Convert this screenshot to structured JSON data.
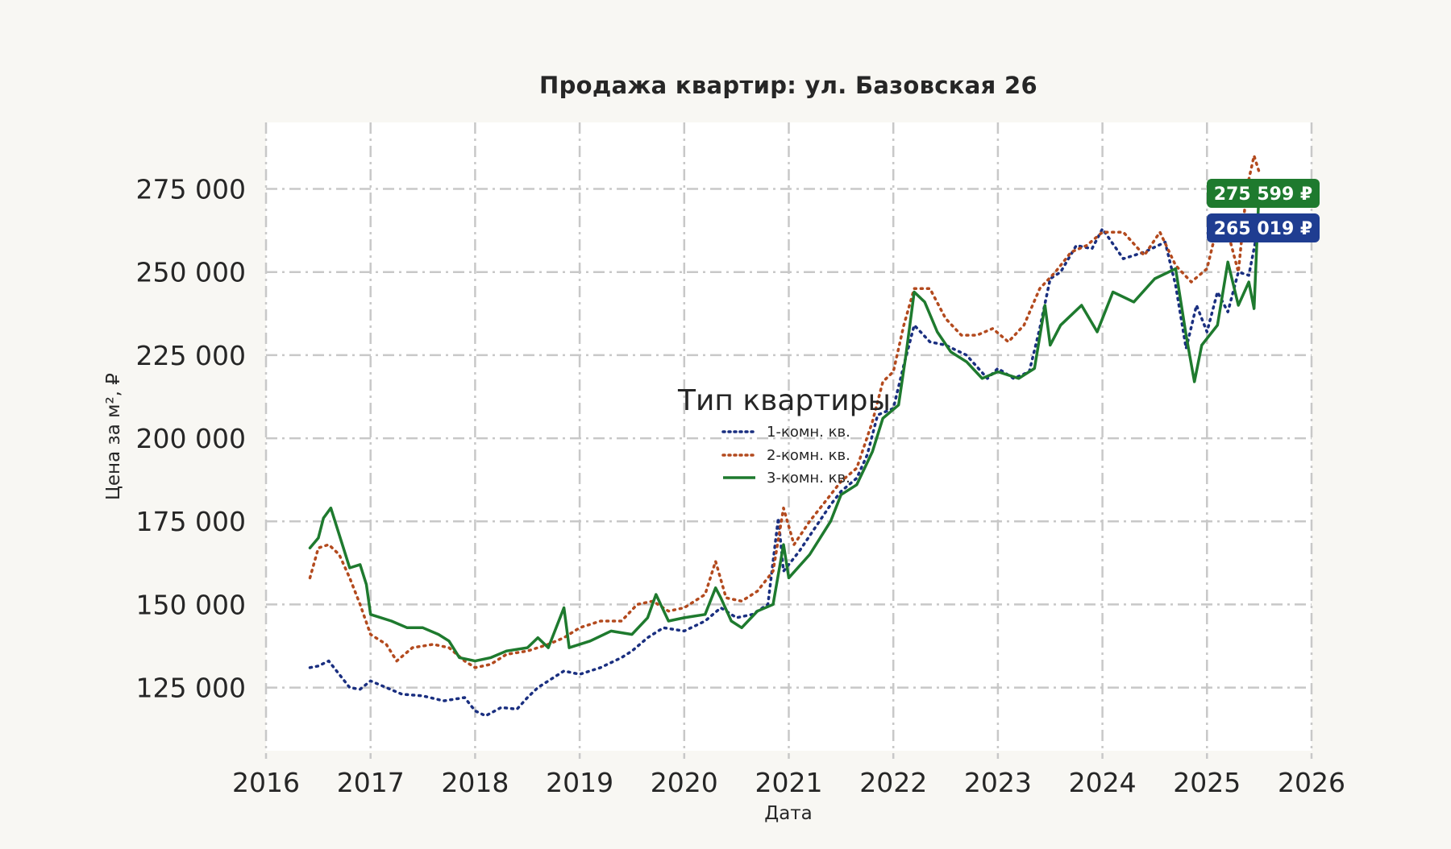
{
  "chart_data": {
    "type": "line",
    "title": "Продажа квартир: ул. Базовская 26",
    "xlabel": "Дата",
    "ylabel": "Цена за м², ₽",
    "xlim": [
      2016.0,
      2026.0
    ],
    "ylim": [
      106000,
      295000
    ],
    "x_ticks": [
      2016,
      2017,
      2018,
      2019,
      2020,
      2021,
      2022,
      2023,
      2024,
      2025,
      2026
    ],
    "x_tick_labels": [
      "2016",
      "2017",
      "2018",
      "2019",
      "2020",
      "2021",
      "2022",
      "2023",
      "2024",
      "2025",
      "2026"
    ],
    "y_ticks": [
      125000,
      150000,
      175000,
      200000,
      225000,
      250000,
      275000
    ],
    "y_tick_labels": [
      "125 000",
      "150 000",
      "175 000",
      "200 000",
      "225 000",
      "250 000",
      "275 000"
    ],
    "grid": true,
    "legend": {
      "title": "Тип квартиры",
      "placement": "center"
    },
    "series": [
      {
        "name": "1-комн. кв.",
        "color": "#1a2f80",
        "style": "dotted",
        "points": [
          [
            2016.42,
            131000
          ],
          [
            2016.5,
            131500
          ],
          [
            2016.6,
            133000
          ],
          [
            2016.7,
            129000
          ],
          [
            2016.8,
            125000
          ],
          [
            2016.9,
            124500
          ],
          [
            2017.0,
            127000
          ],
          [
            2017.15,
            125000
          ],
          [
            2017.3,
            123000
          ],
          [
            2017.5,
            122500
          ],
          [
            2017.7,
            121000
          ],
          [
            2017.9,
            122000
          ],
          [
            2018.0,
            118000
          ],
          [
            2018.1,
            116500
          ],
          [
            2018.25,
            119000
          ],
          [
            2018.4,
            118500
          ],
          [
            2018.5,
            122000
          ],
          [
            2018.6,
            125000
          ],
          [
            2018.75,
            128000
          ],
          [
            2018.85,
            130000
          ],
          [
            2019.0,
            129000
          ],
          [
            2019.2,
            131000
          ],
          [
            2019.4,
            134000
          ],
          [
            2019.5,
            136000
          ],
          [
            2019.65,
            140000
          ],
          [
            2019.8,
            143000
          ],
          [
            2020.0,
            142000
          ],
          [
            2020.2,
            145000
          ],
          [
            2020.35,
            149000
          ],
          [
            2020.5,
            146000
          ],
          [
            2020.65,
            147000
          ],
          [
            2020.8,
            150000
          ],
          [
            2020.9,
            176000
          ],
          [
            2020.95,
            160000
          ],
          [
            2021.1,
            166000
          ],
          [
            2021.25,
            173000
          ],
          [
            2021.4,
            180000
          ],
          [
            2021.5,
            184000
          ],
          [
            2021.65,
            188000
          ],
          [
            2021.75,
            195000
          ],
          [
            2021.85,
            207000
          ],
          [
            2022.0,
            209000
          ],
          [
            2022.1,
            222000
          ],
          [
            2022.2,
            234000
          ],
          [
            2022.35,
            229000
          ],
          [
            2022.5,
            228000
          ],
          [
            2022.7,
            225000
          ],
          [
            2022.9,
            218000
          ],
          [
            2023.0,
            221000
          ],
          [
            2023.15,
            218000
          ],
          [
            2023.3,
            220000
          ],
          [
            2023.4,
            233000
          ],
          [
            2023.5,
            248000
          ],
          [
            2023.6,
            250000
          ],
          [
            2023.75,
            258000
          ],
          [
            2023.9,
            257000
          ],
          [
            2024.0,
            263000
          ],
          [
            2024.2,
            254000
          ],
          [
            2024.4,
            256000
          ],
          [
            2024.6,
            259000
          ],
          [
            2024.7,
            246000
          ],
          [
            2024.8,
            227000
          ],
          [
            2024.9,
            240000
          ],
          [
            2025.0,
            232000
          ],
          [
            2025.1,
            244000
          ],
          [
            2025.2,
            238000
          ],
          [
            2025.3,
            250000
          ],
          [
            2025.4,
            249000
          ],
          [
            2025.5,
            265019
          ]
        ],
        "last_value_label": "265 019 ₽"
      },
      {
        "name": "2-комн. кв.",
        "color": "#b34a1e",
        "style": "dotted",
        "points": [
          [
            2016.42,
            158000
          ],
          [
            2016.5,
            167000
          ],
          [
            2016.6,
            168000
          ],
          [
            2016.7,
            165000
          ],
          [
            2016.8,
            158000
          ],
          [
            2016.9,
            150000
          ],
          [
            2017.0,
            141000
          ],
          [
            2017.15,
            138000
          ],
          [
            2017.25,
            133000
          ],
          [
            2017.4,
            137000
          ],
          [
            2017.6,
            138000
          ],
          [
            2017.75,
            137000
          ],
          [
            2017.9,
            133000
          ],
          [
            2018.0,
            131000
          ],
          [
            2018.15,
            132000
          ],
          [
            2018.3,
            135000
          ],
          [
            2018.5,
            136000
          ],
          [
            2018.7,
            138000
          ],
          [
            2018.85,
            140000
          ],
          [
            2019.0,
            143000
          ],
          [
            2019.2,
            145000
          ],
          [
            2019.4,
            145000
          ],
          [
            2019.55,
            150000
          ],
          [
            2019.7,
            151000
          ],
          [
            2019.85,
            148000
          ],
          [
            2020.0,
            149000
          ],
          [
            2020.2,
            153000
          ],
          [
            2020.3,
            163000
          ],
          [
            2020.4,
            152000
          ],
          [
            2020.55,
            151000
          ],
          [
            2020.7,
            154000
          ],
          [
            2020.85,
            160000
          ],
          [
            2020.95,
            179000
          ],
          [
            2021.05,
            168000
          ],
          [
            2021.2,
            175000
          ],
          [
            2021.35,
            181000
          ],
          [
            2021.5,
            187000
          ],
          [
            2021.65,
            191000
          ],
          [
            2021.8,
            205000
          ],
          [
            2021.9,
            217000
          ],
          [
            2022.0,
            220000
          ],
          [
            2022.1,
            234000
          ],
          [
            2022.2,
            245000
          ],
          [
            2022.35,
            245000
          ],
          [
            2022.5,
            236000
          ],
          [
            2022.65,
            231000
          ],
          [
            2022.8,
            231000
          ],
          [
            2022.95,
            233000
          ],
          [
            2023.1,
            229000
          ],
          [
            2023.25,
            234000
          ],
          [
            2023.4,
            245000
          ],
          [
            2023.55,
            250000
          ],
          [
            2023.7,
            256000
          ],
          [
            2023.85,
            258000
          ],
          [
            2024.0,
            262000
          ],
          [
            2024.2,
            262000
          ],
          [
            2024.4,
            255000
          ],
          [
            2024.55,
            262000
          ],
          [
            2024.7,
            252000
          ],
          [
            2024.85,
            247000
          ],
          [
            2025.0,
            251000
          ],
          [
            2025.1,
            264000
          ],
          [
            2025.2,
            262000
          ],
          [
            2025.3,
            250000
          ],
          [
            2025.38,
            275000
          ],
          [
            2025.45,
            285000
          ],
          [
            2025.5,
            280000
          ]
        ]
      },
      {
        "name": "3-комн. кв.",
        "color": "#1e7a2e",
        "style": "solid",
        "points": [
          [
            2016.42,
            167000
          ],
          [
            2016.5,
            170000
          ],
          [
            2016.55,
            176000
          ],
          [
            2016.62,
            179000
          ],
          [
            2016.7,
            171000
          ],
          [
            2016.8,
            161000
          ],
          [
            2016.9,
            162000
          ],
          [
            2016.96,
            156000
          ],
          [
            2017.0,
            147000
          ],
          [
            2017.2,
            145000
          ],
          [
            2017.35,
            143000
          ],
          [
            2017.5,
            143000
          ],
          [
            2017.65,
            141000
          ],
          [
            2017.75,
            139000
          ],
          [
            2017.85,
            134000
          ],
          [
            2018.0,
            133000
          ],
          [
            2018.15,
            134000
          ],
          [
            2018.3,
            136000
          ],
          [
            2018.5,
            137000
          ],
          [
            2018.6,
            140000
          ],
          [
            2018.7,
            137000
          ],
          [
            2018.85,
            149000
          ],
          [
            2018.9,
            137000
          ],
          [
            2019.1,
            139000
          ],
          [
            2019.3,
            142000
          ],
          [
            2019.5,
            141000
          ],
          [
            2019.65,
            146000
          ],
          [
            2019.73,
            153000
          ],
          [
            2019.85,
            145000
          ],
          [
            2020.0,
            146000
          ],
          [
            2020.2,
            147000
          ],
          [
            2020.3,
            155000
          ],
          [
            2020.35,
            152000
          ],
          [
            2020.45,
            145000
          ],
          [
            2020.55,
            143000
          ],
          [
            2020.7,
            148000
          ],
          [
            2020.85,
            150000
          ],
          [
            2020.95,
            168000
          ],
          [
            2021.0,
            158000
          ],
          [
            2021.2,
            165000
          ],
          [
            2021.4,
            175000
          ],
          [
            2021.5,
            183000
          ],
          [
            2021.65,
            186000
          ],
          [
            2021.8,
            196000
          ],
          [
            2021.9,
            206000
          ],
          [
            2022.05,
            210000
          ],
          [
            2022.12,
            225000
          ],
          [
            2022.2,
            244000
          ],
          [
            2022.3,
            241000
          ],
          [
            2022.42,
            232000
          ],
          [
            2022.55,
            226000
          ],
          [
            2022.7,
            223000
          ],
          [
            2022.85,
            218000
          ],
          [
            2023.0,
            220000
          ],
          [
            2023.2,
            218000
          ],
          [
            2023.35,
            221000
          ],
          [
            2023.45,
            240000
          ],
          [
            2023.5,
            228000
          ],
          [
            2023.6,
            234000
          ],
          [
            2023.8,
            240000
          ],
          [
            2023.95,
            232000
          ],
          [
            2024.1,
            244000
          ],
          [
            2024.3,
            241000
          ],
          [
            2024.5,
            248000
          ],
          [
            2024.7,
            251000
          ],
          [
            2024.8,
            231000
          ],
          [
            2024.88,
            217000
          ],
          [
            2024.95,
            228000
          ],
          [
            2025.1,
            234000
          ],
          [
            2025.2,
            253000
          ],
          [
            2025.3,
            240000
          ],
          [
            2025.4,
            247000
          ],
          [
            2025.45,
            239000
          ],
          [
            2025.5,
            275599
          ]
        ],
        "last_value_label": "275 599 ₽"
      }
    ],
    "badges": [
      {
        "series": "3-комн. кв.",
        "text": "275 599 ₽",
        "color": "#1e7a2e",
        "value": 275599
      },
      {
        "series": "1-комн. кв.",
        "text": "265 019 ₽",
        "color": "#1f3d91",
        "value": 265019
      }
    ],
    "colors": {
      "background": "#f8f7f3",
      "plot_background": "#ffffff",
      "grid": "#c8c8c8",
      "text": "#262626"
    }
  }
}
